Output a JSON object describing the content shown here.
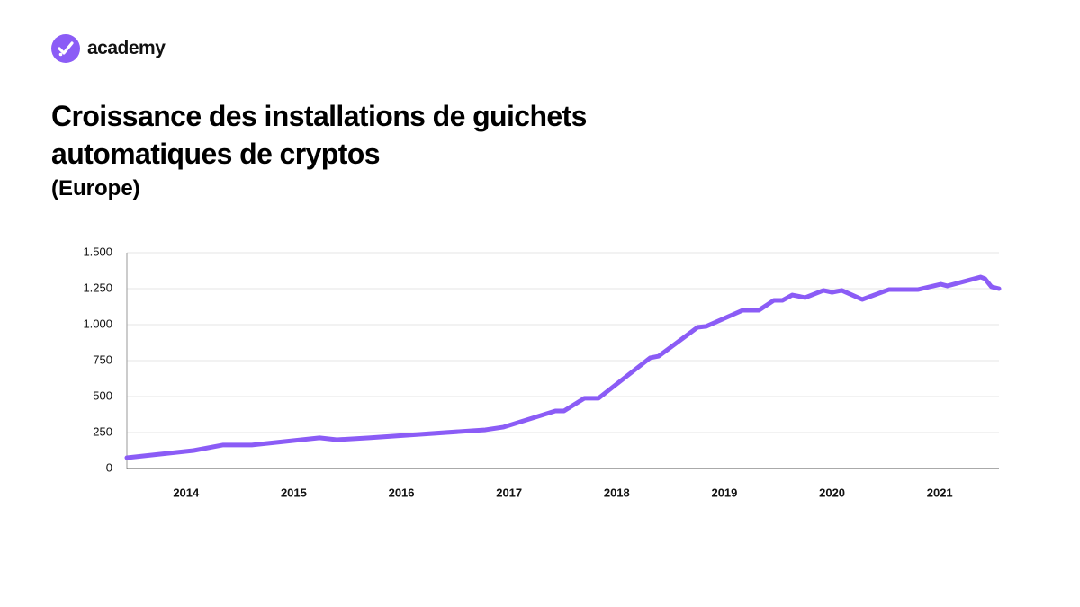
{
  "brand": "academy",
  "chart_data": {
    "type": "line",
    "title": "Croissance des installations de guichets automatiques de cryptos",
    "subtitle": "(Europe)",
    "x": [
      2013.45,
      2014.07,
      2014.34,
      2014.61,
      2015.24,
      2015.4,
      2015.7,
      2016.78,
      2016.95,
      2017.43,
      2017.51,
      2017.7,
      2017.83,
      2018.31,
      2018.39,
      2018.75,
      2018.83,
      2019.17,
      2019.32,
      2019.46,
      2019.54,
      2019.63,
      2019.75,
      2019.92,
      2020.0,
      2020.09,
      2020.28,
      2020.53,
      2020.8,
      2021.01,
      2021.07,
      2021.38,
      2021.42,
      2021.48,
      2021.55
    ],
    "series": [
      {
        "color": "#8b5cf6",
        "values": [
          75,
          125,
          163,
          163,
          213,
          200,
          213,
          269,
          288,
          400,
          400,
          488,
          488,
          769,
          781,
          981,
          988,
          1100,
          1100,
          1169,
          1169,
          1206,
          1188,
          1238,
          1225,
          1238,
          1175,
          1244,
          1244,
          1281,
          1269,
          1331,
          1319,
          1263,
          1250
        ]
      }
    ],
    "xlim": [
      2013.45,
      2021.55
    ],
    "xticks": [
      2014,
      2015,
      2016,
      2017,
      2018,
      2019,
      2020,
      2021
    ],
    "ylim": [
      0,
      1500
    ],
    "yticks": [
      0,
      250,
      500,
      750,
      {
        "value": 1000,
        "label": "1.000"
      },
      {
        "value": 1250,
        "label": "1.250"
      },
      {
        "value": 1500,
        "label": "1.500"
      }
    ],
    "grid": true
  }
}
